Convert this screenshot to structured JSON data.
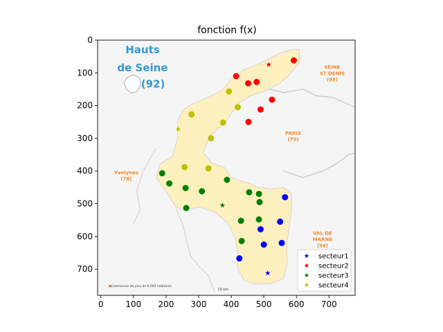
{
  "chart_data": {
    "type": "scatter",
    "title": "fonction f(x)",
    "xlabel": "",
    "ylabel": "",
    "xlim": [
      -10,
      780
    ],
    "ylim": [
      780,
      0
    ],
    "y_inverted": true,
    "xticks": [
      0,
      100,
      200,
      300,
      400,
      500,
      600,
      700
    ],
    "yticks": [
      0,
      100,
      200,
      300,
      400,
      500,
      600,
      700
    ],
    "grid": false,
    "legend_position": "lower-right",
    "background_map": {
      "title_line1": "Hauts",
      "title_line2": "de Seine",
      "title_number": "(92)",
      "region_labels": [
        {
          "line1": "SEINE",
          "line2": "ST DENIS",
          "line3": "(93)"
        },
        {
          "line1": "PARIS",
          "line2": "(75)",
          "line3": ""
        },
        {
          "line1": "Yvelynes",
          "line2": "(78)",
          "line3": ""
        },
        {
          "line1": "VAL DE",
          "line2": "MARNE",
          "line3": "(94)"
        }
      ],
      "footnote": "Communes de plus de 6,000 habitants",
      "scale_label": "10 km"
    },
    "series": [
      {
        "name": "secteur1",
        "color": "#0000ff",
        "centroid": [
          512,
          712
        ],
        "points": [
          [
            565,
            480
          ],
          [
            490,
            578
          ],
          [
            550,
            555
          ],
          [
            500,
            625
          ],
          [
            555,
            620
          ],
          [
            425,
            667
          ]
        ]
      },
      {
        "name": "secteur2",
        "color": "#ff0000",
        "centroid": [
          515,
          75
        ],
        "points": [
          [
            592,
            62
          ],
          [
            415,
            110
          ],
          [
            452,
            132
          ],
          [
            478,
            128
          ],
          [
            525,
            182
          ],
          [
            490,
            212
          ],
          [
            453,
            250
          ]
        ]
      },
      {
        "name": "secteur3",
        "color": "#008000",
        "centroid": [
          373,
          505
        ],
        "points": [
          [
            188,
            407
          ],
          [
            210,
            438
          ],
          [
            260,
            452
          ],
          [
            387,
            427
          ],
          [
            310,
            462
          ],
          [
            455,
            465
          ],
          [
            485,
            470
          ],
          [
            487,
            495
          ],
          [
            262,
            513
          ],
          [
            430,
            552
          ],
          [
            485,
            548
          ],
          [
            432,
            614
          ]
        ]
      },
      {
        "name": "secteur4",
        "color": "#bfbf00",
        "centroid": [
          237,
          272
        ],
        "points": [
          [
            393,
            157
          ],
          [
            420,
            205
          ],
          [
            278,
            227
          ],
          [
            375,
            252
          ],
          [
            338,
            300
          ],
          [
            257,
            388
          ],
          [
            330,
            392
          ]
        ]
      }
    ]
  }
}
